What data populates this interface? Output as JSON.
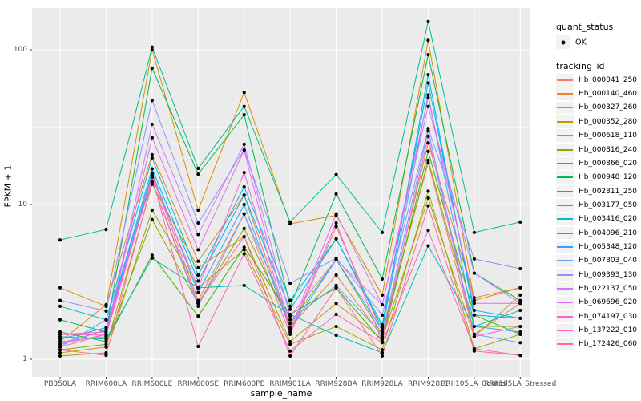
{
  "chart_data": {
    "type": "line",
    "title": "",
    "xlabel": "sample_name",
    "ylabel": "FPKM + 1",
    "y_scale": "log10",
    "y_ticks": [
      1,
      10,
      100
    ],
    "y_minor": [
      3.1623,
      31.623
    ],
    "ylim_px_note": "log10 axis, 1 to ~180",
    "grid": true,
    "legend_position": "right",
    "categories": [
      "PB350LA",
      "RRIM600LA",
      "RRIM600LE",
      "RRIM600SE",
      "RRIM600PE",
      "RRIM901LA",
      "RRIM928BA",
      "RRIM928LA",
      "RRIM928LE",
      "RRII105LA_Control",
      "RRII105LA_Stressed"
    ],
    "quant_status": {
      "title": "quant_status",
      "items": [
        {
          "label": "OK",
          "marker": "black-point"
        }
      ]
    },
    "tracking_id_title": "tracking_id",
    "series": [
      {
        "name": "Hb_000041_250",
        "color": "#F8766D",
        "values": [
          1.2,
          1.45,
          15.5,
          2.4,
          8.7,
          1.45,
          7.2,
          1.5,
          18.6,
          1.45,
          2.3
        ]
      },
      {
        "name": "Hb_000140_460",
        "color": "#EA8331",
        "values": [
          1.3,
          2.25,
          21,
          4.3,
          11.5,
          1.6,
          3.5,
          1.4,
          25,
          2.5,
          2.9
        ]
      },
      {
        "name": "Hb_000327_260",
        "color": "#D89000",
        "values": [
          2.9,
          2.2,
          100,
          9.2,
          53,
          7.5,
          8.5,
          2.6,
          115,
          2.4,
          2.9
        ]
      },
      {
        "name": "Hb_000352_280",
        "color": "#C09B00",
        "values": [
          1.1,
          1.2,
          13.5,
          3.9,
          6.2,
          1.3,
          2.3,
          1.35,
          11,
          1.4,
          2.6
        ]
      },
      {
        "name": "Hb_000618_110",
        "color": "#A3A500",
        "values": [
          1.05,
          1.1,
          9.2,
          2.9,
          5.1,
          1.25,
          1.63,
          1.15,
          12.2,
          1.17,
          1.45
        ]
      },
      {
        "name": "Hb_000816_240",
        "color": "#7CAE00",
        "values": [
          1.15,
          1.25,
          8.0,
          2.3,
          7.0,
          1.7,
          4.4,
          1.45,
          19.3,
          1.63,
          1.63
        ]
      },
      {
        "name": "Hb_000866_020",
        "color": "#39B600",
        "values": [
          1.5,
          1.3,
          4.7,
          1.9,
          5.3,
          1.95,
          2.9,
          1.3,
          22,
          1.93,
          1.45
        ]
      },
      {
        "name": "Hb_000948_120",
        "color": "#00BB4E",
        "values": [
          1.8,
          1.5,
          76,
          15.7,
          38,
          2.2,
          11.7,
          3.3,
          93,
          3.6,
          2.4
        ]
      },
      {
        "name": "Hb_002811_250",
        "color": "#00C087",
        "values": [
          5.9,
          6.9,
          104,
          17.1,
          43,
          7.7,
          15.6,
          6.6,
          152,
          6.6,
          7.7
        ]
      },
      {
        "name": "Hb_003177_050",
        "color": "#00C0B2",
        "values": [
          1.4,
          1.35,
          4.5,
          2.9,
          3.0,
          1.95,
          1.43,
          1.1,
          5.4,
          1.63,
          2.07
        ]
      },
      {
        "name": "Hb_003416_020",
        "color": "#00BCD8",
        "values": [
          2.2,
          1.8,
          20,
          3.5,
          13,
          2.4,
          6.0,
          1.67,
          61,
          2.07,
          1.84
        ]
      },
      {
        "name": "Hb_004096_210",
        "color": "#00B0F6",
        "values": [
          1.35,
          1.6,
          17,
          3.2,
          11.5,
          2.1,
          6.0,
          1.6,
          69,
          1.93,
          1.84
        ]
      },
      {
        "name": "Hb_005348_120",
        "color": "#35A2FF",
        "values": [
          1.25,
          1.55,
          16,
          2.7,
          10,
          1.57,
          4.4,
          1.55,
          51,
          1.63,
          1.5
        ]
      },
      {
        "name": "Hb_007803_040",
        "color": "#6B9EFF",
        "values": [
          1.2,
          1.8,
          14,
          2.2,
          8.7,
          1.8,
          3.0,
          1.45,
          30,
          1.45,
          1.28
        ]
      },
      {
        "name": "Hb_009393_130",
        "color": "#9590FF",
        "values": [
          2.4,
          2.05,
          47,
          7.6,
          22.5,
          3.1,
          4.5,
          1.93,
          31,
          4.45,
          3.85
        ]
      },
      {
        "name": "Hb_022137_050",
        "color": "#C77CFF",
        "values": [
          1.3,
          1.4,
          33,
          6.4,
          24.5,
          1.9,
          4.4,
          2.25,
          43,
          3.6,
          2.3
        ]
      },
      {
        "name": "Hb_069696_020",
        "color": "#E76BF3",
        "values": [
          1.25,
          1.45,
          27,
          5.1,
          22.4,
          1.55,
          8.7,
          2.25,
          49,
          2.3,
          2.3
        ]
      },
      {
        "name": "Hb_074197_030",
        "color": "#FA62DB",
        "values": [
          1.45,
          1.5,
          15,
          2.9,
          16.1,
          1.5,
          7.6,
          1.3,
          27.6,
          1.4,
          1.63
        ]
      },
      {
        "name": "Hb_137222_010",
        "color": "#FF62BC",
        "values": [
          1.45,
          1.43,
          15,
          1.21,
          4.8,
          1.13,
          1.95,
          1.28,
          6.8,
          1.17,
          1.06
        ]
      },
      {
        "name": "Hb_172426_060",
        "color": "#FF6A98",
        "values": [
          1.15,
          1.06,
          14,
          2.3,
          6.2,
          1.05,
          2.9,
          1.05,
          9.8,
          1.13,
          1.06
        ]
      }
    ],
    "style": {
      "panel_bg": "#EBEBEB",
      "grid_color": "#FFFFFF",
      "key_bg": "#F2F2F2",
      "tick_text_color": "#4D4D4D",
      "point_color": "#000000"
    }
  }
}
